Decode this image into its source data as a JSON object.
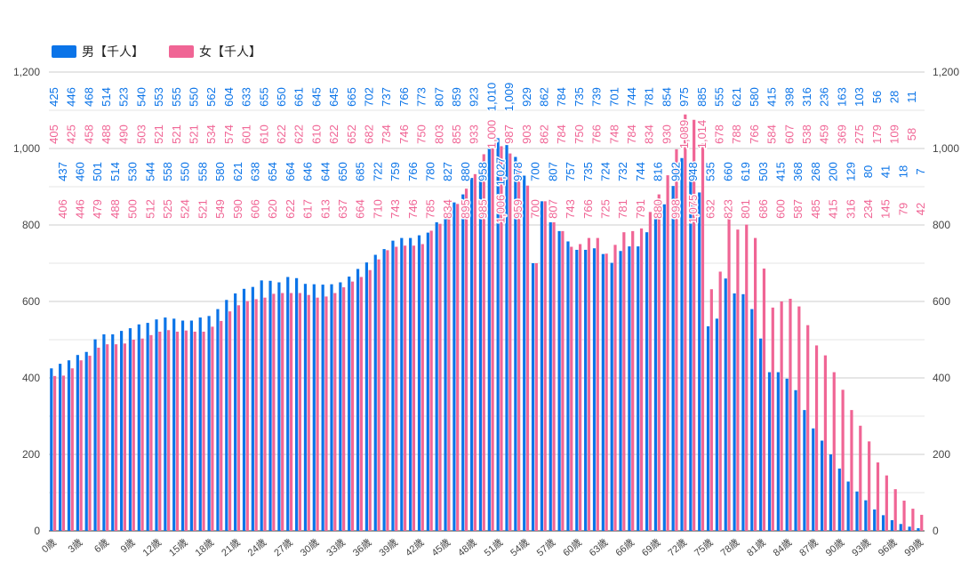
{
  "chart_data": {
    "type": "bar",
    "title": "",
    "xlabel": "",
    "ylabel": "",
    "ylim": [
      0,
      1200
    ],
    "yticks": [
      0,
      200,
      400,
      600,
      800,
      1000,
      1200
    ],
    "ytick_labels": [
      "0",
      "200",
      "400",
      "600",
      "800",
      "1,000",
      "1,200"
    ],
    "grid": true,
    "legend_position": "top-left",
    "x_label_suffix": "歳",
    "x_tick_every": 3,
    "categories_start": 0,
    "categories_end": 99,
    "series": [
      {
        "name": "男【千人】",
        "color": "#0b74e8",
        "values": [
          425,
          437,
          446,
          460,
          468,
          501,
          514,
          514,
          523,
          530,
          540,
          544,
          553,
          558,
          555,
          550,
          550,
          558,
          562,
          580,
          604,
          621,
          633,
          638,
          655,
          654,
          650,
          664,
          661,
          646,
          645,
          644,
          645,
          650,
          665,
          685,
          702,
          722,
          737,
          759,
          766,
          766,
          773,
          780,
          807,
          827,
          859,
          880,
          923,
          958,
          1010,
          1027,
          1009,
          978,
          929,
          700,
          862,
          807,
          784,
          757,
          735,
          735,
          739,
          724,
          701,
          732,
          744,
          744,
          781,
          816,
          854,
          902,
          975,
          948,
          885,
          535,
          555,
          660,
          621,
          619,
          580,
          503,
          415,
          415,
          398,
          368,
          316,
          268,
          236,
          200,
          163,
          129,
          103,
          80,
          56,
          41,
          28,
          18,
          11,
          7
        ]
      },
      {
        "name": "女【千人】",
        "color": "#f06595",
        "values": [
          405,
          406,
          425,
          446,
          458,
          479,
          488,
          488,
          490,
          500,
          503,
          512,
          521,
          525,
          521,
          524,
          521,
          521,
          534,
          549,
          574,
          590,
          601,
          606,
          610,
          620,
          622,
          622,
          622,
          617,
          610,
          613,
          622,
          637,
          652,
          664,
          682,
          710,
          734,
          743,
          746,
          746,
          750,
          785,
          803,
          834,
          855,
          895,
          933,
          985,
          1000,
          1006,
          987,
          959,
          903,
          700,
          862,
          807,
          784,
          743,
          750,
          766,
          766,
          725,
          748,
          781,
          784,
          791,
          834,
          880,
          930,
          998,
          1089,
          1075,
          1014,
          632,
          678,
          823,
          788,
          801,
          766,
          686,
          584,
          600,
          607,
          587,
          538,
          485,
          459,
          415,
          369,
          316,
          275,
          234,
          179,
          145,
          109,
          79,
          58,
          42
        ]
      }
    ]
  }
}
